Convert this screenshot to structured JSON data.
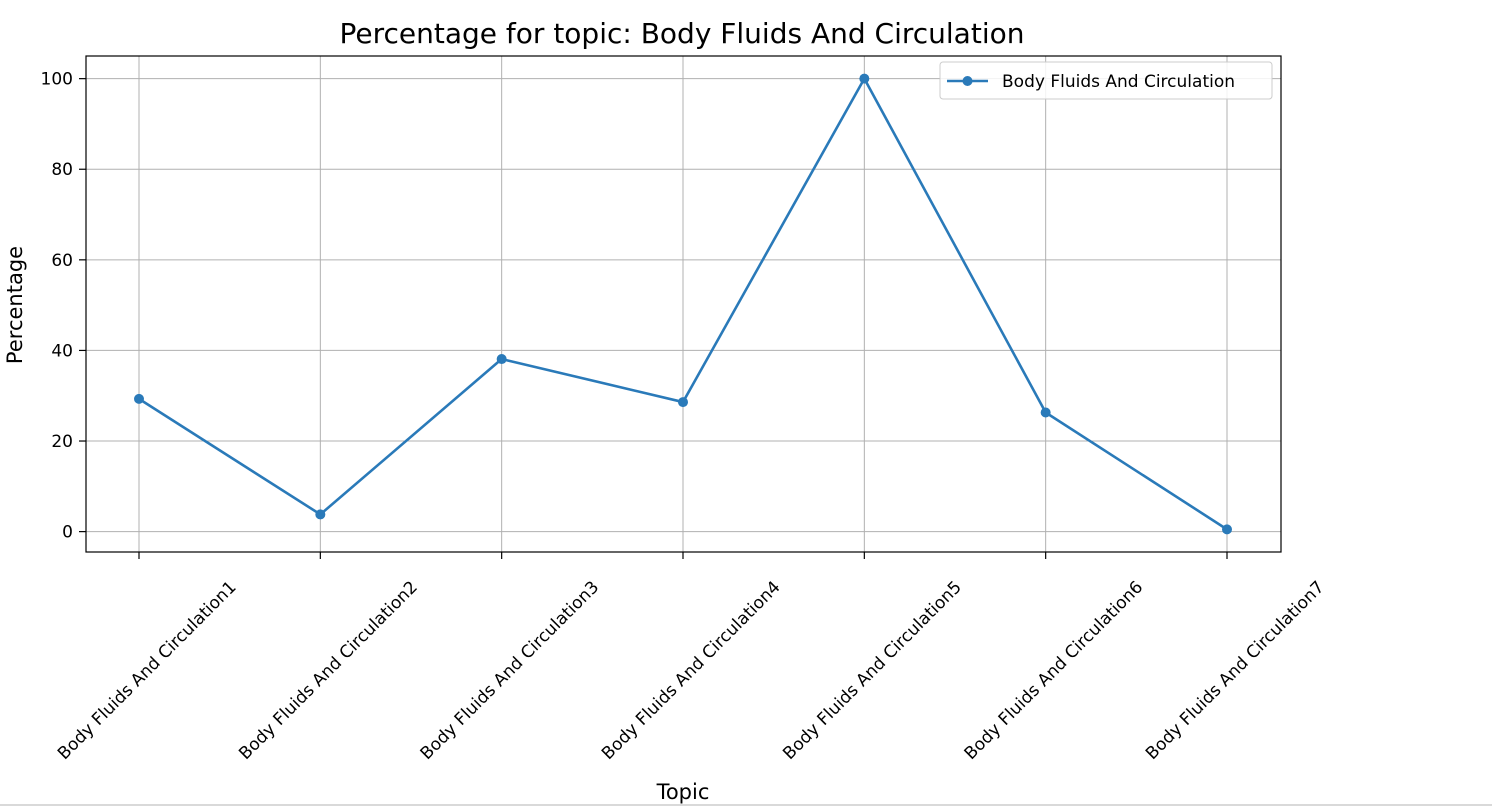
{
  "chart_data": {
    "type": "line",
    "title": "Percentage for topic: Body Fluids And Circulation",
    "xlabel": "Topic",
    "ylabel": "Percentage",
    "categories": [
      "Body Fluids And Circulation1",
      "Body Fluids And Circulation2",
      "Body Fluids And Circulation3",
      "Body Fluids And Circulation4",
      "Body Fluids And Circulation5",
      "Body Fluids And Circulation6",
      "Body Fluids And Circulation7"
    ],
    "series": [
      {
        "name": "Body Fluids And Circulation",
        "values": [
          29.3,
          3.8,
          38.1,
          28.6,
          100,
          26.3,
          0.5
        ],
        "color": "#2a7ab9",
        "marker": "circle"
      }
    ],
    "ylim": [
      -4.5,
      105
    ],
    "yticks": [
      0,
      20,
      40,
      60,
      80,
      100
    ],
    "xtick_rotation": 45,
    "grid": true,
    "legend_position": "upper-right"
  }
}
